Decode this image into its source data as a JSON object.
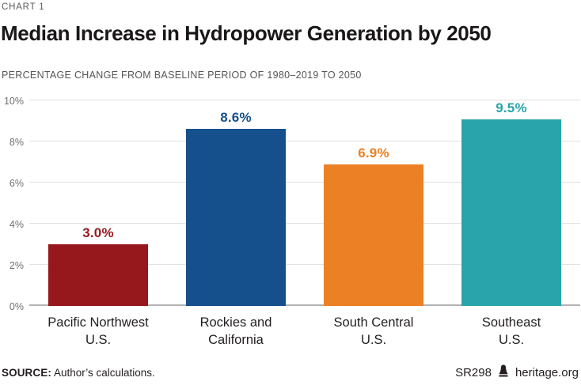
{
  "header": {
    "eyebrow": "CHART 1",
    "title": "Median Increase in Hydropower Generation by 2050",
    "subtitle": "PERCENTAGE CHANGE FROM BASELINE PERIOD OF 1980–2019 TO 2050"
  },
  "chart_data": {
    "type": "bar",
    "title": "Median Increase in Hydropower Generation by 2050",
    "subtitle": "PERCENTAGE CHANGE FROM BASELINE PERIOD OF 1980–2019 TO 2050",
    "categories": [
      "Pacific Northwest\nU.S.",
      "Rockies and\nCalifornia",
      "South Central\nU.S.",
      "Southeast\nU.S."
    ],
    "values": [
      3.0,
      8.6,
      6.9,
      9.5
    ],
    "value_labels": [
      "3.0%",
      "8.6%",
      "6.9%",
      "9.5%"
    ],
    "bar_colors": [
      "#96171c",
      "#15508c",
      "#ec8024",
      "#29a4aa"
    ],
    "xlabel": "",
    "ylabel": "",
    "ylim": [
      0,
      10
    ],
    "yticks": [
      0,
      2,
      4,
      6,
      8,
      10
    ],
    "ytick_labels": [
      "0%",
      "2%",
      "4%",
      "6%",
      "8%",
      "10%"
    ],
    "grid": true,
    "legend": false,
    "gridline_color": "#e2e2e2",
    "baseline_color": "#b3b3b3"
  },
  "footer": {
    "source_label": "SOURCE:",
    "source_text": " Author’s calculations.",
    "report_id": "SR298",
    "brand": "heritage.org",
    "brand_icon": "liberty-bell-icon"
  }
}
